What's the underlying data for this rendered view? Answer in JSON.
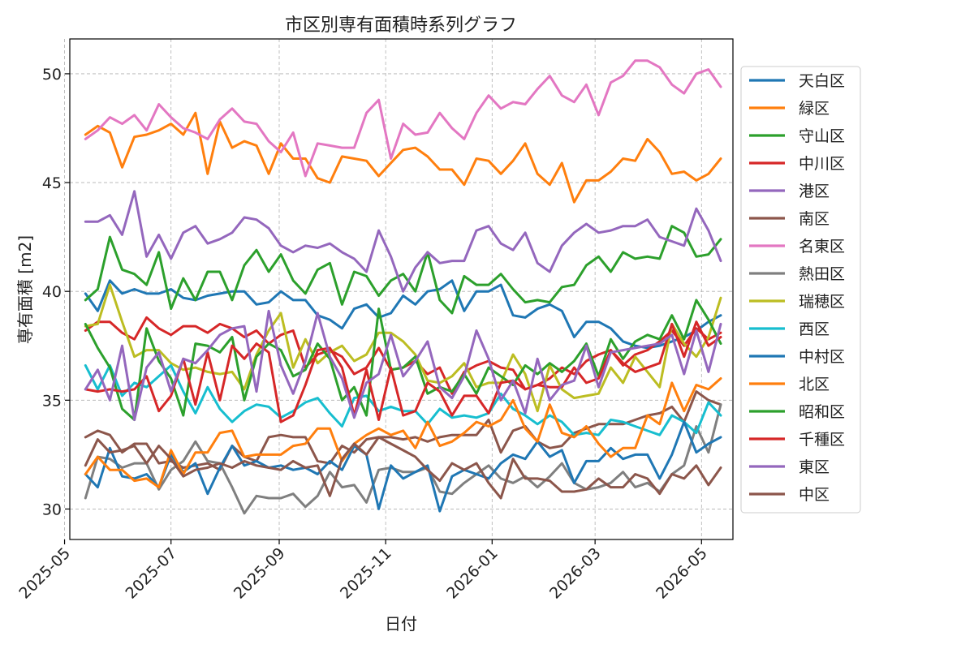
{
  "chart_data": {
    "type": "line",
    "title": "市区別専有面積時系列グラフ",
    "xlabel": "日付",
    "ylabel": "専有面積 [m2]",
    "ylim": [
      28.6,
      51.6
    ],
    "xlim": [
      "2025-05-04",
      "2026-05-19"
    ],
    "grid": true,
    "legend_position": "right",
    "x_ticks": [
      "2025-05",
      "2025-07",
      "2025-09",
      "2025-11",
      "2026-01",
      "2026-03",
      "2026-05"
    ],
    "y_ticks": [
      30,
      35,
      40,
      45,
      50
    ],
    "x": [
      "2025-05-13",
      "2025-05-20",
      "2025-05-27",
      "2025-06-03",
      "2025-06-10",
      "2025-06-17",
      "2025-06-24",
      "2025-07-01",
      "2025-07-08",
      "2025-07-15",
      "2025-07-22",
      "2025-07-29",
      "2025-08-05",
      "2025-08-12",
      "2025-08-19",
      "2025-08-26",
      "2025-09-02",
      "2025-09-09",
      "2025-09-16",
      "2025-09-23",
      "2025-09-30",
      "2025-10-07",
      "2025-10-14",
      "2025-10-21",
      "2025-10-28",
      "2025-11-04",
      "2025-11-11",
      "2025-11-18",
      "2025-11-25",
      "2025-12-02",
      "2025-12-09",
      "2025-12-16",
      "2025-12-23",
      "2025-12-30",
      "2026-01-06",
      "2026-01-13",
      "2026-01-20",
      "2026-01-27",
      "2026-02-03",
      "2026-02-10",
      "2026-02-17",
      "2026-02-24",
      "2026-03-03",
      "2026-03-10",
      "2026-03-17",
      "2026-03-24",
      "2026-03-31",
      "2026-04-07",
      "2026-04-14",
      "2026-04-21",
      "2026-04-28",
      "2026-05-05",
      "2026-05-12"
    ],
    "series": [
      {
        "name": "天白区",
        "color": "#1f77b4",
        "values": [
          39.9,
          39.1,
          40.5,
          39.9,
          40.1,
          39.9,
          39.9,
          40.1,
          39.7,
          39.6,
          39.8,
          39.9,
          40.0,
          40.0,
          39.4,
          39.5,
          40.0,
          39.6,
          39.6,
          38.9,
          38.7,
          38.3,
          39.2,
          39.4,
          38.8,
          39.0,
          39.8,
          39.4,
          40.0,
          40.1,
          40.5,
          39.1,
          40.0,
          40.0,
          40.3,
          38.9,
          38.8,
          39.2,
          39.4,
          39.1,
          37.9,
          38.6,
          38.6,
          38.3,
          37.7,
          37.5,
          37.4,
          37.5,
          37.7,
          37.9,
          38.2,
          38.6,
          38.9
        ]
      },
      {
        "name": "緑区",
        "color": "#ff7f0e",
        "values": [
          47.2,
          47.6,
          47.3,
          45.7,
          47.1,
          47.2,
          47.4,
          47.7,
          47.2,
          48.2,
          45.4,
          47.8,
          46.6,
          46.9,
          46.7,
          45.4,
          46.8,
          46.1,
          46.1,
          45.2,
          45.0,
          46.2,
          46.1,
          46.0,
          45.3,
          45.9,
          46.5,
          46.6,
          46.2,
          45.6,
          45.6,
          44.9,
          46.1,
          46.0,
          45.4,
          46.0,
          46.8,
          45.4,
          44.9,
          45.9,
          44.1,
          45.1,
          45.1,
          45.5,
          46.1,
          46.0,
          47.0,
          46.4,
          45.4,
          45.5,
          45.1,
          45.4,
          46.1
        ]
      },
      {
        "name": "守山区",
        "color": "#2ca02c",
        "values": [
          39.6,
          40.1,
          42.5,
          41.0,
          40.8,
          40.3,
          41.8,
          39.2,
          40.6,
          39.6,
          40.9,
          40.9,
          39.6,
          41.2,
          41.9,
          40.9,
          41.7,
          40.5,
          39.9,
          41.0,
          41.3,
          39.4,
          40.9,
          40.7,
          39.8,
          40.5,
          40.8,
          40.0,
          41.8,
          39.6,
          39.0,
          40.7,
          40.3,
          40.3,
          40.8,
          40.1,
          39.5,
          39.6,
          39.5,
          40.2,
          40.3,
          41.2,
          41.6,
          40.9,
          41.8,
          41.5,
          41.6,
          41.5,
          43.0,
          42.7,
          41.6,
          41.7,
          42.4
        ]
      },
      {
        "name": "中川区",
        "color": "#d62728",
        "values": [
          38.2,
          38.6,
          38.6,
          38.1,
          37.8,
          38.8,
          38.3,
          38.0,
          38.4,
          38.4,
          38.1,
          38.5,
          38.3,
          37.9,
          38.2,
          37.6,
          38.0,
          38.2,
          36.5,
          37.1,
          37.3,
          37.0,
          36.2,
          36.5,
          37.4,
          36.4,
          36.5,
          36.8,
          36.2,
          36.5,
          35.3,
          36.3,
          36.6,
          36.8,
          36.5,
          36.4,
          35.5,
          35.7,
          36.0,
          36.5,
          36.2,
          36.8,
          37.1,
          37.3,
          36.6,
          37.1,
          37.3,
          37.7,
          38.2,
          37.5,
          38.3,
          37.8,
          38.1
        ]
      },
      {
        "name": "港区",
        "color": "#9467bd",
        "values": [
          43.2,
          43.2,
          43.5,
          42.6,
          44.6,
          41.6,
          42.6,
          41.5,
          42.7,
          43.0,
          42.2,
          42.4,
          42.7,
          43.4,
          43.3,
          42.9,
          42.1,
          41.8,
          42.1,
          42.0,
          42.2,
          41.8,
          41.5,
          40.9,
          42.8,
          41.6,
          40.0,
          41.1,
          41.8,
          41.3,
          41.4,
          41.4,
          42.8,
          43.0,
          42.2,
          41.9,
          42.7,
          41.3,
          40.9,
          42.1,
          42.7,
          43.1,
          42.7,
          42.8,
          43.0,
          43.0,
          43.3,
          42.5,
          42.3,
          42.1,
          43.8,
          42.8,
          41.4
        ]
      },
      {
        "name": "南区",
        "color": "#8c564b",
        "values": [
          33.3,
          33.6,
          33.4,
          32.6,
          33.0,
          33.0,
          32.1,
          32.2,
          31.9,
          32.0,
          32.1,
          31.8,
          32.9,
          32.4,
          32.2,
          33.3,
          33.4,
          33.3,
          33.3,
          32.2,
          32.1,
          32.9,
          32.6,
          33.2,
          33.3,
          33.3,
          33.2,
          33.3,
          33.1,
          33.3,
          33.4,
          33.4,
          33.4,
          34.1,
          32.6,
          33.6,
          33.8,
          33.1,
          32.8,
          32.9,
          33.5,
          33.7,
          33.9,
          33.9,
          33.9,
          34.1,
          34.3,
          34.4,
          34.7,
          34.0,
          35.4,
          35.0,
          34.8
        ]
      },
      {
        "name": "名東区",
        "color": "#e377c2",
        "values": [
          47.0,
          47.4,
          48.0,
          47.7,
          48.1,
          47.4,
          48.6,
          48.0,
          47.5,
          47.3,
          47.0,
          47.9,
          48.4,
          47.8,
          47.7,
          46.9,
          46.4,
          47.3,
          45.3,
          46.8,
          46.7,
          46.6,
          46.6,
          48.2,
          48.8,
          46.1,
          47.7,
          47.2,
          47.3,
          48.2,
          47.5,
          47.0,
          48.2,
          49.0,
          48.4,
          48.7,
          48.6,
          49.3,
          49.9,
          49.0,
          48.7,
          49.5,
          48.1,
          49.6,
          49.9,
          50.6,
          50.6,
          50.3,
          49.5,
          49.1,
          50.0,
          50.2,
          49.4
        ]
      },
      {
        "name": "熱田区",
        "color": "#7f7f7f",
        "values": [
          30.5,
          32.4,
          32.3,
          31.9,
          32.1,
          32.1,
          30.9,
          31.8,
          32.2,
          33.1,
          32.2,
          32.1,
          31.0,
          29.8,
          30.6,
          30.5,
          30.5,
          30.7,
          30.1,
          30.6,
          31.7,
          31.0,
          31.1,
          30.3,
          31.8,
          31.9,
          31.7,
          31.7,
          31.9,
          30.8,
          30.7,
          31.2,
          31.6,
          32.0,
          31.4,
          31.2,
          31.5,
          31.0,
          31.5,
          32.1,
          31.2,
          30.9,
          31.0,
          31.2,
          31.7,
          31.0,
          31.2,
          30.8,
          31.6,
          32.0,
          33.8,
          32.6,
          34.8
        ]
      },
      {
        "name": "瑞穂区",
        "color": "#bcbd22",
        "values": [
          38.4,
          38.5,
          40.3,
          38.6,
          37.0,
          37.3,
          37.3,
          36.7,
          36.4,
          36.5,
          36.3,
          36.2,
          36.3,
          35.5,
          37.1,
          38.2,
          39.0,
          36.5,
          37.8,
          36.7,
          37.2,
          37.5,
          36.8,
          37.1,
          38.1,
          38.1,
          37.7,
          37.1,
          35.9,
          35.8,
          36.1,
          36.7,
          35.6,
          35.8,
          35.8,
          37.1,
          36.2,
          34.5,
          36.6,
          35.5,
          35.1,
          35.2,
          35.3,
          36.5,
          35.8,
          37.0,
          36.3,
          35.6,
          38.5,
          37.6,
          37.0,
          37.9,
          39.7
        ]
      },
      {
        "name": "西区",
        "color": "#17becf",
        "values": [
          36.6,
          35.5,
          36.6,
          35.2,
          35.8,
          35.6,
          36.1,
          36.6,
          35.4,
          34.4,
          35.6,
          34.6,
          34.0,
          34.5,
          34.8,
          34.7,
          34.2,
          34.5,
          34.9,
          35.1,
          34.4,
          33.8,
          35.1,
          35.2,
          34.5,
          34.7,
          34.5,
          34.5,
          33.9,
          34.6,
          34.2,
          34.3,
          34.2,
          34.4,
          35.3,
          34.6,
          34.3,
          33.9,
          34.3,
          34.0,
          33.4,
          33.5,
          33.4,
          34.1,
          34.0,
          33.8,
          33.6,
          33.4,
          34.3,
          34.0,
          33.5,
          34.9,
          34.3
        ]
      },
      {
        "name": "中村区",
        "color": "#1f77b4",
        "values": [
          31.6,
          31.0,
          32.8,
          31.5,
          31.4,
          31.6,
          31.0,
          32.5,
          31.7,
          32.1,
          30.7,
          31.9,
          32.9,
          32.0,
          32.2,
          31.9,
          32.0,
          31.8,
          31.9,
          31.6,
          32.2,
          31.8,
          32.9,
          32.5,
          30.0,
          32.0,
          31.4,
          31.7,
          32.0,
          29.9,
          31.5,
          31.8,
          31.6,
          31.4,
          32.1,
          32.5,
          32.3,
          33.1,
          32.4,
          32.7,
          31.2,
          32.2,
          32.2,
          32.8,
          32.3,
          32.5,
          32.5,
          31.4,
          32.5,
          34.0,
          32.6,
          33.0,
          33.3
        ]
      },
      {
        "name": "北区",
        "color": "#ff7f0e",
        "values": [
          31.6,
          32.4,
          31.8,
          31.8,
          31.3,
          31.4,
          31.0,
          32.7,
          31.6,
          32.6,
          32.6,
          33.5,
          33.6,
          32.4,
          32.5,
          32.5,
          32.5,
          32.9,
          33.0,
          33.7,
          33.7,
          32.2,
          33.0,
          33.4,
          33.7,
          33.4,
          33.6,
          32.8,
          34.0,
          32.9,
          33.1,
          33.5,
          34.0,
          33.8,
          34.1,
          35.0,
          33.7,
          33.1,
          34.8,
          33.5,
          33.3,
          33.8,
          33.0,
          32.4,
          32.8,
          32.8,
          34.3,
          33.9,
          35.8,
          34.5,
          35.7,
          35.5,
          36.0
        ]
      },
      {
        "name": "昭和区",
        "color": "#2ca02c",
        "values": [
          38.5,
          37.4,
          36.5,
          34.6,
          34.1,
          38.3,
          36.8,
          36.0,
          34.3,
          37.6,
          37.5,
          37.2,
          37.9,
          35.0,
          37.0,
          37.6,
          37.3,
          36.1,
          36.4,
          37.6,
          36.9,
          35.0,
          35.6,
          34.3,
          39.2,
          36.4,
          36.5,
          37.0,
          35.3,
          35.6,
          35.4,
          36.2,
          35.3,
          36.5,
          36.1,
          35.7,
          36.6,
          36.2,
          36.7,
          36.3,
          36.8,
          37.6,
          36.1,
          37.8,
          36.9,
          37.7,
          38.0,
          37.8,
          38.9,
          37.8,
          39.6,
          38.7,
          37.6
        ]
      },
      {
        "name": "千種区",
        "color": "#d62728",
        "values": [
          35.5,
          35.4,
          35.5,
          35.4,
          35.5,
          36.1,
          34.5,
          35.2,
          36.9,
          34.8,
          37.2,
          35.0,
          37.5,
          36.9,
          37.6,
          37.2,
          34.0,
          34.3,
          35.7,
          37.3,
          37.4,
          36.5,
          34.3,
          36.4,
          34.1,
          36.5,
          34.3,
          34.5,
          35.8,
          35.4,
          34.3,
          35.2,
          35.2,
          34.4,
          35.8,
          35.9,
          35.5,
          35.7,
          35.6,
          35.6,
          36.5,
          35.8,
          36.0,
          37.3,
          36.7,
          36.3,
          36.5,
          36.7,
          38.5,
          37.0,
          38.6,
          37.5,
          37.9
        ]
      },
      {
        "name": "東区",
        "color": "#9467bd",
        "values": [
          35.5,
          36.4,
          35.0,
          37.5,
          34.1,
          36.5,
          37.2,
          35.4,
          36.9,
          36.7,
          37.3,
          38.0,
          38.3,
          38.4,
          35.4,
          39.1,
          36.6,
          35.3,
          36.8,
          39.0,
          37.0,
          36.0,
          34.2,
          35.8,
          36.2,
          38.0,
          36.1,
          36.8,
          37.7,
          35.6,
          35.1,
          36.1,
          38.2,
          36.9,
          35.0,
          35.9,
          34.4,
          36.9,
          35.0,
          35.7,
          35.9,
          37.5,
          35.6,
          37.2,
          37.3,
          37.4,
          37.5,
          37.6,
          38.0,
          36.2,
          38.2,
          36.3,
          38.5
        ]
      },
      {
        "name": "中区",
        "color": "#8c564b",
        "values": [
          32.0,
          33.2,
          32.6,
          32.7,
          32.9,
          32.1,
          32.9,
          32.3,
          31.5,
          31.8,
          31.9,
          32.1,
          31.9,
          32.2,
          32.0,
          31.9,
          31.8,
          32.2,
          31.9,
          32.0,
          30.6,
          32.3,
          33.0,
          32.5,
          33.3,
          33.0,
          32.7,
          32.4,
          31.8,
          31.3,
          32.1,
          31.8,
          32.1,
          31.2,
          30.5,
          32.3,
          31.4,
          31.4,
          31.3,
          30.8,
          30.8,
          30.9,
          31.4,
          31.0,
          31.0,
          31.6,
          31.4,
          30.7,
          31.6,
          31.4,
          32.0,
          31.1,
          31.9
        ]
      }
    ]
  }
}
